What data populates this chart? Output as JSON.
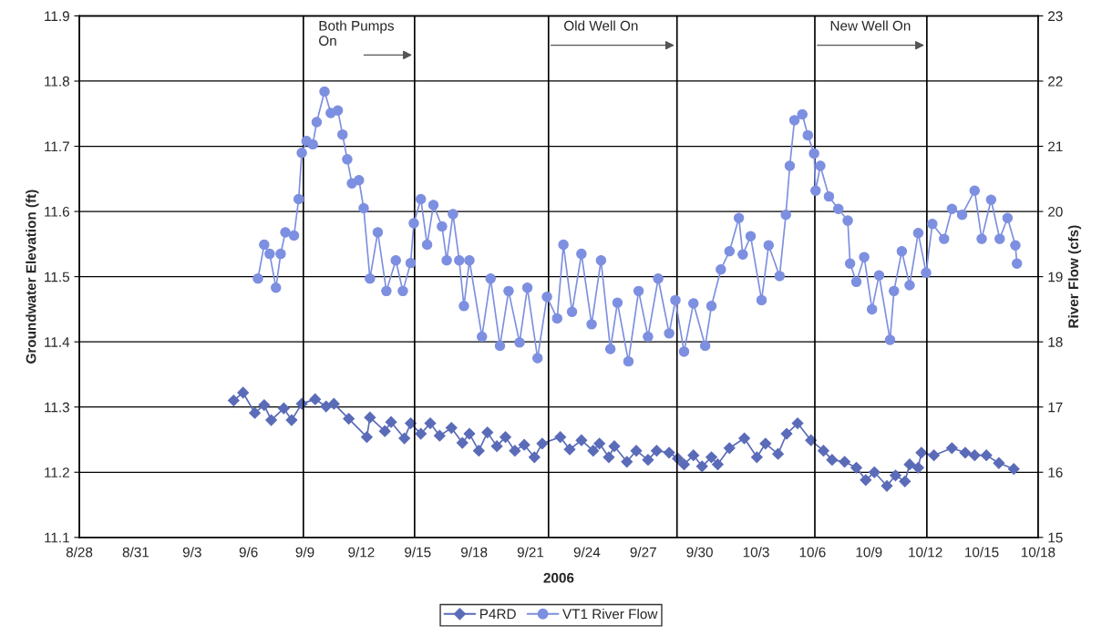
{
  "chart_data": {
    "type": "line",
    "xlabel": "2006",
    "ylabel": "Groundwater Elevation (ft)",
    "y2label": "River Flow (cfs)",
    "series": [
      {
        "name": "P4RD",
        "color": "#5a6bb8",
        "marker": "diamond",
        "x": [
          "2006-09-05T05:00",
          "2006-09-05T17:00",
          "2006-09-06T08:00",
          "2006-09-06T20:00",
          "2006-09-07T05:00",
          "2006-09-07T21:00",
          "2006-09-08T07:00",
          "2006-09-08T20:00",
          "2006-09-09T13:00",
          "2006-09-10T03:00",
          "2006-09-10T13:00",
          "2006-09-11T08:00",
          "2006-09-12T07:00",
          "2006-09-12T11:00",
          "2006-09-13T06:00",
          "2006-09-13T14:00",
          "2006-09-14T07:00",
          "2006-09-14T15:00",
          "2006-09-15T04:00",
          "2006-09-15T16:00",
          "2006-09-16T04:00",
          "2006-09-16T19:00",
          "2006-09-17T09:00",
          "2006-09-17T18:00",
          "2006-09-18T06:00",
          "2006-09-18T17:00",
          "2006-09-19T05:00",
          "2006-09-19T16:00",
          "2006-09-20T04:00",
          "2006-09-20T16:00",
          "2006-09-21T05:00",
          "2006-09-21T15:00",
          "2006-09-22T14:00",
          "2006-09-23T02:00",
          "2006-09-23T17:00",
          "2006-09-24T08:00",
          "2006-09-24T16:00",
          "2006-09-25T04:00",
          "2006-09-25T11:00",
          "2006-09-26T03:00",
          "2006-09-26T15:00",
          "2006-09-27T06:00",
          "2006-09-27T17:00",
          "2006-09-28T09:00",
          "2006-09-28T20:00",
          "2006-09-29T04:00",
          "2006-09-29T16:00",
          "2006-09-30T03:00",
          "2006-09-30T15:00",
          "2006-09-30T23:00",
          "2006-10-01T14:00",
          "2006-10-02T09:00",
          "2006-10-03T01:00",
          "2006-10-03T12:00",
          "2006-10-04T04:00",
          "2006-10-04T15:00",
          "2006-10-05T05:00",
          "2006-10-05T22:00",
          "2006-10-06T14:00",
          "2006-10-07T01:00",
          "2006-10-07T17:00",
          "2006-10-08T08:00",
          "2006-10-08T20:00",
          "2006-10-09T07:00",
          "2006-10-09T23:00",
          "2006-10-10T10:00",
          "2006-10-10T22:00",
          "2006-10-11T04:00",
          "2006-10-11T15:00",
          "2006-10-11T19:00",
          "2006-10-12T11:00",
          "2006-10-13T10:00",
          "2006-10-14T03:00",
          "2006-10-14T15:00",
          "2006-10-15T06:00",
          "2006-10-15T22:00",
          "2006-10-16T17:00"
        ],
        "values": [
          11.31,
          11.322,
          11.291,
          11.303,
          11.28,
          11.298,
          11.28,
          11.305,
          11.312,
          11.301,
          11.305,
          11.282,
          11.254,
          11.284,
          11.263,
          11.277,
          11.252,
          11.275,
          11.259,
          11.275,
          11.256,
          11.268,
          11.245,
          11.259,
          11.233,
          11.261,
          11.24,
          11.254,
          11.233,
          11.242,
          11.223,
          11.244,
          11.254,
          11.235,
          11.249,
          11.233,
          11.244,
          11.223,
          11.24,
          11.216,
          11.233,
          11.219,
          11.233,
          11.23,
          11.221,
          11.212,
          11.226,
          11.209,
          11.223,
          11.212,
          11.237,
          11.252,
          11.223,
          11.244,
          11.228,
          11.259,
          11.275,
          11.249,
          11.233,
          11.219,
          11.216,
          11.207,
          11.188,
          11.2,
          11.179,
          11.195,
          11.186,
          11.212,
          11.207,
          11.23,
          11.226,
          11.237,
          11.23,
          11.226,
          11.226,
          11.214,
          11.205
        ]
      },
      {
        "name": "VT1 River Flow",
        "color": "#7d8fe0",
        "marker": "circle",
        "axis": "y2",
        "x": [
          "2006-09-06T12:00",
          "2006-09-06T20:00",
          "2006-09-07T03:00",
          "2006-09-07T11:00",
          "2006-09-07T17:00",
          "2006-09-07T23:00",
          "2006-09-08T10:00",
          "2006-09-08T16:00",
          "2006-09-08T20:00",
          "2006-09-09T02:00",
          "2006-09-09T10:00",
          "2006-09-09T15:00",
          "2006-09-10T01:00",
          "2006-09-10T09:00",
          "2006-09-10T18:00",
          "2006-09-11T00:00",
          "2006-09-11T06:00",
          "2006-09-11T12:00",
          "2006-09-11T21:00",
          "2006-09-12T03:00",
          "2006-09-12T11:00",
          "2006-09-12T21:00",
          "2006-09-13T08:00",
          "2006-09-13T20:00",
          "2006-09-14T05:00",
          "2006-09-14T15:00",
          "2006-09-14T19:00",
          "2006-09-15T04:00",
          "2006-09-15T12:00",
          "2006-09-15T20:00",
          "2006-09-16T07:00",
          "2006-09-16T13:00",
          "2006-09-16T21:00",
          "2006-09-17T05:00",
          "2006-09-17T11:00",
          "2006-09-17T18:00",
          "2006-09-18T10:00",
          "2006-09-18T21:00",
          "2006-09-19T09:00",
          "2006-09-19T20:00",
          "2006-09-20T10:00",
          "2006-09-20T20:00",
          "2006-09-21T09:00",
          "2006-09-21T21:00",
          "2006-09-22T10:00",
          "2006-09-22T18:00",
          "2006-09-23T05:00",
          "2006-09-23T17:00",
          "2006-09-24T06:00",
          "2006-09-24T18:00",
          "2006-09-25T06:00",
          "2006-09-25T15:00",
          "2006-09-26T05:00",
          "2006-09-26T18:00",
          "2006-09-27T06:00",
          "2006-09-27T19:00",
          "2006-09-28T09:00",
          "2006-09-28T17:00",
          "2006-09-29T04:00",
          "2006-09-29T16:00",
          "2006-09-30T07:00",
          "2006-09-30T15:00",
          "2006-10-01T03:00",
          "2006-10-01T14:00",
          "2006-10-02T02:00",
          "2006-10-02T07:00",
          "2006-10-02T17:00",
          "2006-10-03T07:00",
          "2006-10-03T16:00",
          "2006-10-04T06:00",
          "2006-10-04T14:00",
          "2006-10-04T19:00",
          "2006-10-05T01:00",
          "2006-10-05T11:00",
          "2006-10-05T18:00",
          "2006-10-06T02:00",
          "2006-10-06T04:00",
          "2006-10-06T10:00",
          "2006-10-06T21:00",
          "2006-10-07T09:00",
          "2006-10-07T21:00",
          "2006-10-08T00:00",
          "2006-10-08T08:00",
          "2006-10-08T18:00",
          "2006-10-09T04:00",
          "2006-10-09T13:00",
          "2006-10-10T03:00",
          "2006-10-10T08:00",
          "2006-10-10T18:00",
          "2006-10-11T04:00",
          "2006-10-11T15:00",
          "2006-10-12T01:00",
          "2006-10-12T09:00",
          "2006-10-13T00:00",
          "2006-10-13T10:00",
          "2006-10-13T23:00",
          "2006-10-14T15:00",
          "2006-10-15T00:00",
          "2006-10-15T12:00",
          "2006-10-15T23:00",
          "2006-10-16T09:00",
          "2006-10-16T19:00",
          "2006-10-16T21:00"
        ],
        "values": [
          18.97,
          19.49,
          19.35,
          18.83,
          19.35,
          19.68,
          19.63,
          20.19,
          20.9,
          21.08,
          21.03,
          21.37,
          21.84,
          21.51,
          21.55,
          21.18,
          20.8,
          20.43,
          20.48,
          20.05,
          18.97,
          19.68,
          18.78,
          19.25,
          18.78,
          19.21,
          19.82,
          20.19,
          19.49,
          20.1,
          19.77,
          19.25,
          19.96,
          19.25,
          18.55,
          19.25,
          18.08,
          18.97,
          17.94,
          18.78,
          17.99,
          18.83,
          17.75,
          18.69,
          18.36,
          19.49,
          18.46,
          19.35,
          18.27,
          19.25,
          17.89,
          18.6,
          17.7,
          18.78,
          18.08,
          18.97,
          18.13,
          18.64,
          17.85,
          18.59,
          17.94,
          18.55,
          19.11,
          19.39,
          19.9,
          19.34,
          19.62,
          18.64,
          19.48,
          19.01,
          19.95,
          20.7,
          21.4,
          21.49,
          21.17,
          20.89,
          20.32,
          20.7,
          20.23,
          20.04,
          19.86,
          19.2,
          18.92,
          19.3,
          18.5,
          19.02,
          18.03,
          18.78,
          19.39,
          18.87,
          19.67,
          19.06,
          19.81,
          19.58,
          20.04,
          19.95,
          20.32,
          19.58,
          20.18,
          19.58,
          19.9,
          19.48,
          19.2
        ]
      }
    ],
    "xlim": [
      "2006-08-28",
      "2006-10-18"
    ],
    "xticks": [
      {
        "value": "2006-08-28",
        "label": "8/28"
      },
      {
        "value": "2006-08-31",
        "label": "8/31"
      },
      {
        "value": "2006-09-03",
        "label": "9/3"
      },
      {
        "value": "2006-09-06",
        "label": "9/6"
      },
      {
        "value": "2006-09-09",
        "label": "9/9"
      },
      {
        "value": "2006-09-12",
        "label": "9/12"
      },
      {
        "value": "2006-09-15",
        "label": "9/15"
      },
      {
        "value": "2006-09-18",
        "label": "9/18"
      },
      {
        "value": "2006-09-21",
        "label": "9/21"
      },
      {
        "value": "2006-09-24",
        "label": "9/24"
      },
      {
        "value": "2006-09-27",
        "label": "9/27"
      },
      {
        "value": "2006-09-30",
        "label": "9/30"
      },
      {
        "value": "2006-10-03",
        "label": "10/3"
      },
      {
        "value": "2006-10-06",
        "label": "10/6"
      },
      {
        "value": "2006-10-09",
        "label": "10/9"
      },
      {
        "value": "2006-10-12",
        "label": "10/12"
      },
      {
        "value": "2006-10-15",
        "label": "10/15"
      },
      {
        "value": "2006-10-18",
        "label": "10/18"
      }
    ],
    "ylim": [
      11.1,
      11.9
    ],
    "yticks": [
      11.1,
      11.2,
      11.3,
      11.4,
      11.5,
      11.6,
      11.7,
      11.8,
      11.9
    ],
    "y2lim": [
      15,
      23
    ],
    "y2ticks": [
      15,
      16,
      17,
      18,
      19,
      20,
      21,
      22,
      23
    ],
    "ref_lines": [
      {
        "axis": "x",
        "value": "2006-09-08T22:00",
        "label": "Both Pumps\nOn",
        "color": "#000000"
      },
      {
        "axis": "x",
        "value": "2006-09-14T20:00",
        "color": "#000000"
      },
      {
        "axis": "x",
        "value": "2006-09-21T23:00",
        "label": "Old Well On",
        "color": "#000000"
      },
      {
        "axis": "x",
        "value": "2006-09-28T19:00",
        "color": "#000000"
      },
      {
        "axis": "x",
        "value": "2006-10-06T03:00",
        "label": "New Well On",
        "color": "#000000"
      },
      {
        "axis": "x",
        "value": "2006-10-12T02:00",
        "color": "#000000"
      }
    ],
    "grid": "y",
    "legend": "bottom",
    "line_style": "solid"
  }
}
